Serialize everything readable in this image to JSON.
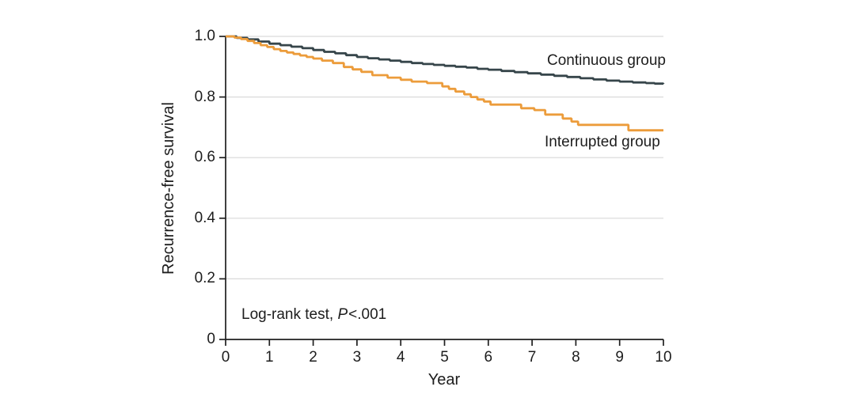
{
  "figure": {
    "background": "#ffffff",
    "text_color": "#1d1d1d"
  },
  "chart_data": {
    "type": "line",
    "subtype": "kaplan-meier-step",
    "title": "",
    "xlabel": "Year",
    "ylabel": "Recurrence-free survival",
    "xlim": [
      0,
      10
    ],
    "ylim": [
      0,
      1.0
    ],
    "xticks": [
      0,
      1,
      2,
      3,
      4,
      5,
      6,
      7,
      8,
      9,
      10
    ],
    "yticks": [
      0,
      0.2,
      0.4,
      0.6,
      0.8,
      1.0
    ],
    "ytick_labels": [
      "0",
      "0.2",
      "0.4",
      "0.6",
      "0.8",
      "1.0"
    ],
    "grid": "horizontal",
    "gridline_color": "#d9d9d9",
    "axis_color": "#1f1f1f",
    "legend_position": "inline-labels",
    "annotation": {
      "prefix": "Log-rank test, ",
      "stat_symbol": "P",
      "stat_value": "<.001"
    },
    "series": [
      {
        "name": "Continuous group",
        "color": "#36454a",
        "value_at_10y": 0.843,
        "points": [
          [
            0,
            1.0
          ],
          [
            0.25,
            0.995
          ],
          [
            0.5,
            0.99
          ],
          [
            0.75,
            0.983
          ],
          [
            1.0,
            0.976
          ],
          [
            1.25,
            0.971
          ],
          [
            1.5,
            0.966
          ],
          [
            1.75,
            0.961
          ],
          [
            2.0,
            0.955
          ],
          [
            2.25,
            0.949
          ],
          [
            2.5,
            0.944
          ],
          [
            2.75,
            0.938
          ],
          [
            3.0,
            0.932
          ],
          [
            3.25,
            0.928
          ],
          [
            3.5,
            0.924
          ],
          [
            3.75,
            0.92
          ],
          [
            4.0,
            0.916
          ],
          [
            4.25,
            0.912
          ],
          [
            4.5,
            0.909
          ],
          [
            4.75,
            0.906
          ],
          [
            5.0,
            0.903
          ],
          [
            5.25,
            0.9
          ],
          [
            5.5,
            0.897
          ],
          [
            5.75,
            0.893
          ],
          [
            6.0,
            0.89
          ],
          [
            6.3,
            0.886
          ],
          [
            6.6,
            0.882
          ],
          [
            6.9,
            0.878
          ],
          [
            7.2,
            0.874
          ],
          [
            7.5,
            0.87
          ],
          [
            7.8,
            0.866
          ],
          [
            8.1,
            0.862
          ],
          [
            8.4,
            0.858
          ],
          [
            8.7,
            0.854
          ],
          [
            9.0,
            0.851
          ],
          [
            9.3,
            0.848
          ],
          [
            9.6,
            0.846
          ],
          [
            9.8,
            0.844
          ],
          [
            10,
            0.843
          ]
        ]
      },
      {
        "name": "Interrupted group",
        "color": "#ec9c3b",
        "value_at_10y": 0.69,
        "points": [
          [
            0,
            1.0
          ],
          [
            0.2,
            0.996
          ],
          [
            0.35,
            0.991
          ],
          [
            0.5,
            0.985
          ],
          [
            0.65,
            0.978
          ],
          [
            0.8,
            0.971
          ],
          [
            0.95,
            0.965
          ],
          [
            1.1,
            0.958
          ],
          [
            1.25,
            0.952
          ],
          [
            1.4,
            0.947
          ],
          [
            1.55,
            0.942
          ],
          [
            1.7,
            0.937
          ],
          [
            1.85,
            0.932
          ],
          [
            2.0,
            0.927
          ],
          [
            2.2,
            0.92
          ],
          [
            2.45,
            0.912
          ],
          [
            2.7,
            0.899
          ],
          [
            2.9,
            0.891
          ],
          [
            3.1,
            0.883
          ],
          [
            3.35,
            0.872
          ],
          [
            3.7,
            0.864
          ],
          [
            4.0,
            0.857
          ],
          [
            4.25,
            0.851
          ],
          [
            4.6,
            0.846
          ],
          [
            4.95,
            0.835
          ],
          [
            5.1,
            0.827
          ],
          [
            5.25,
            0.818
          ],
          [
            5.45,
            0.809
          ],
          [
            5.6,
            0.8
          ],
          [
            5.75,
            0.792
          ],
          [
            5.9,
            0.785
          ],
          [
            6.05,
            0.775
          ],
          [
            6.75,
            0.763
          ],
          [
            7.05,
            0.757
          ],
          [
            7.3,
            0.742
          ],
          [
            7.7,
            0.729
          ],
          [
            7.9,
            0.719
          ],
          [
            8.05,
            0.708
          ],
          [
            9.2,
            0.69
          ],
          [
            10,
            0.69
          ]
        ]
      }
    ]
  }
}
